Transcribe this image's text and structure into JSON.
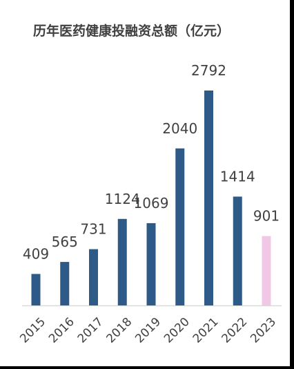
{
  "chart_data": {
    "type": "bar",
    "title": "历年医药健康投融资总额（亿元）",
    "xlabel": "",
    "ylabel": "",
    "categories": [
      "2015",
      "2016",
      "2017",
      "2018",
      "2019",
      "2020",
      "2021",
      "2022",
      "2023"
    ],
    "values": [
      409,
      565,
      731,
      1124,
      1069,
      2040,
      2792,
      1414,
      901
    ],
    "ylim": [
      0,
      2792
    ],
    "colors": {
      "bar": "#2e5a87",
      "highlight": "#f0c8e6",
      "highlight_category": "2023",
      "label": "#404040",
      "axis": "#d9d9d9"
    },
    "grid": false,
    "legend": "none",
    "data_labels": true
  }
}
